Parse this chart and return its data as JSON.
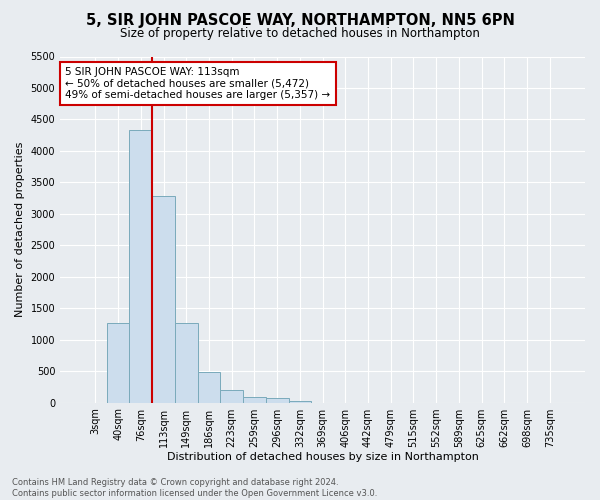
{
  "title": "5, SIR JOHN PASCOE WAY, NORTHAMPTON, NN5 6PN",
  "subtitle": "Size of property relative to detached houses in Northampton",
  "xlabel": "Distribution of detached houses by size in Northampton",
  "ylabel": "Number of detached properties",
  "bar_labels": [
    "3sqm",
    "40sqm",
    "76sqm",
    "113sqm",
    "149sqm",
    "186sqm",
    "223sqm",
    "259sqm",
    "296sqm",
    "332sqm",
    "369sqm",
    "406sqm",
    "442sqm",
    "479sqm",
    "515sqm",
    "552sqm",
    "589sqm",
    "625sqm",
    "662sqm",
    "698sqm",
    "735sqm"
  ],
  "bar_values": [
    0,
    1270,
    4330,
    3290,
    1270,
    490,
    195,
    90,
    65,
    30,
    0,
    0,
    0,
    0,
    0,
    0,
    0,
    0,
    0,
    0,
    0
  ],
  "bar_color": "#ccdded",
  "bar_edge_color": "#7aaabb",
  "vline_x_index": 3,
  "vline_color": "#cc0000",
  "annotation_text": "5 SIR JOHN PASCOE WAY: 113sqm\n← 50% of detached houses are smaller (5,472)\n49% of semi-detached houses are larger (5,357) →",
  "annotation_box_facecolor": "#ffffff",
  "annotation_box_edgecolor": "#cc0000",
  "ylim": [
    0,
    5500
  ],
  "yticks": [
    0,
    500,
    1000,
    1500,
    2000,
    2500,
    3000,
    3500,
    4000,
    4500,
    5000,
    5500
  ],
  "background_color": "#e8ecf0",
  "grid_color": "#ffffff",
  "footer_text": "Contains HM Land Registry data © Crown copyright and database right 2024.\nContains public sector information licensed under the Open Government Licence v3.0.",
  "title_fontsize": 10.5,
  "subtitle_fontsize": 8.5,
  "xlabel_fontsize": 8,
  "ylabel_fontsize": 8,
  "tick_fontsize": 7,
  "annotation_fontsize": 7.5,
  "footer_fontsize": 6
}
